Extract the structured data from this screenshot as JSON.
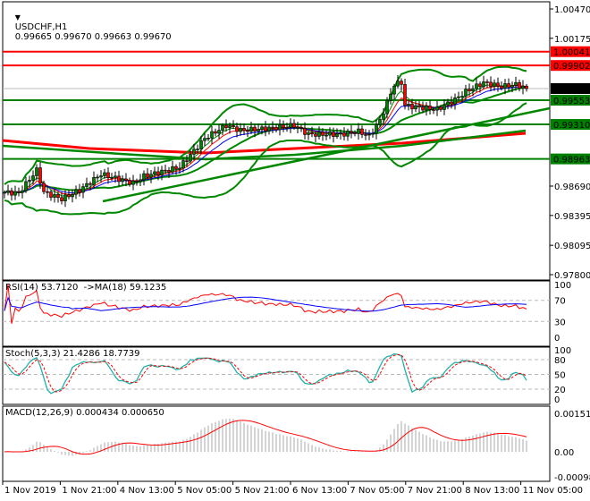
{
  "header": {
    "symbol": "USDCHF,H1",
    "ohlc": "0.99665 0.99670 0.99663 0.99670"
  },
  "colors": {
    "bull": "#008000",
    "bear": "#ff0000",
    "level_red": "#ff0000",
    "level_green": "#008000",
    "current": "#000000"
  },
  "levels": [
    {
      "label": "1.00041",
      "price": 1.00041,
      "color": "red"
    },
    {
      "label": "0.99902",
      "price": 0.99902,
      "color": "red"
    },
    {
      "label": "0.99553",
      "price": 0.99553,
      "color": "green"
    },
    {
      "label": "0.99310",
      "price": 0.9931,
      "color": "green"
    },
    {
      "label": "0.98963",
      "price": 0.98963,
      "color": "green"
    }
  ],
  "current_price": {
    "label": "0.99670",
    "price": 0.9967
  },
  "chart_data": [
    {
      "type": "candlestick",
      "title": "USDCHF,H1",
      "ylim": [
        0.978,
        1.0047
      ],
      "price_ticks": [
        "1.00470",
        "1.00175",
        "0.98690",
        "0.98395",
        "0.98095",
        "0.97800"
      ],
      "time_ticks": [
        "1 Nov 2019",
        "1 Nov 21:00",
        "4 Nov 13:00",
        "5 Nov 05:00",
        "5 Nov 21:00",
        "6 Nov 13:00",
        "7 Nov 05:00",
        "7 Nov 21:00",
        "8 Nov 13:00",
        "11 Nov 05:00"
      ],
      "close_path": [
        [
          0,
          0.98627
        ],
        [
          4,
          0.9862
        ],
        [
          9,
          0.9885
        ],
        [
          11,
          0.9863
        ],
        [
          16,
          0.9856
        ],
        [
          21,
          0.9865
        ],
        [
          27,
          0.9881
        ],
        [
          36,
          0.9872
        ],
        [
          39,
          0.9879
        ],
        [
          49,
          0.9888
        ],
        [
          56,
          0.9917
        ],
        [
          62,
          0.993
        ],
        [
          66,
          0.9925
        ],
        [
          74,
          0.9927
        ],
        [
          81,
          0.993
        ],
        [
          85,
          0.9921
        ],
        [
          94,
          0.9921
        ],
        [
          99,
          0.9924
        ],
        [
          102,
          0.9919
        ],
        [
          105,
          0.9935
        ],
        [
          109,
          0.9971
        ],
        [
          111,
          0.9973
        ],
        [
          112,
          0.995
        ],
        [
          116,
          0.9948
        ],
        [
          121,
          0.9946
        ],
        [
          126,
          0.9956
        ],
        [
          129,
          0.9964
        ],
        [
          134,
          0.9973
        ],
        [
          139,
          0.9969
        ],
        [
          143,
          0.9971
        ],
        [
          146,
          0.9967
        ]
      ]
    },
    {
      "type": "line",
      "title": "RSI(14) 53.7120  ->MA(18) 59.1235",
      "ylim": [
        0,
        100
      ],
      "ticks": [
        "100",
        "70",
        "30",
        "0"
      ]
    },
    {
      "type": "line",
      "title": "Stoch(5,3,3) 21.4286 18.7739",
      "ylim": [
        0,
        100
      ],
      "ticks": [
        "100",
        "80",
        "50",
        "20",
        "0"
      ]
    },
    {
      "type": "bar",
      "title": "MACD(12,26,9) 0.000434 0.000650",
      "ylim": [
        -0.000986,
        0.001515
      ],
      "ticks": [
        "0.001515",
        "0.00",
        "-0.000986"
      ]
    }
  ]
}
